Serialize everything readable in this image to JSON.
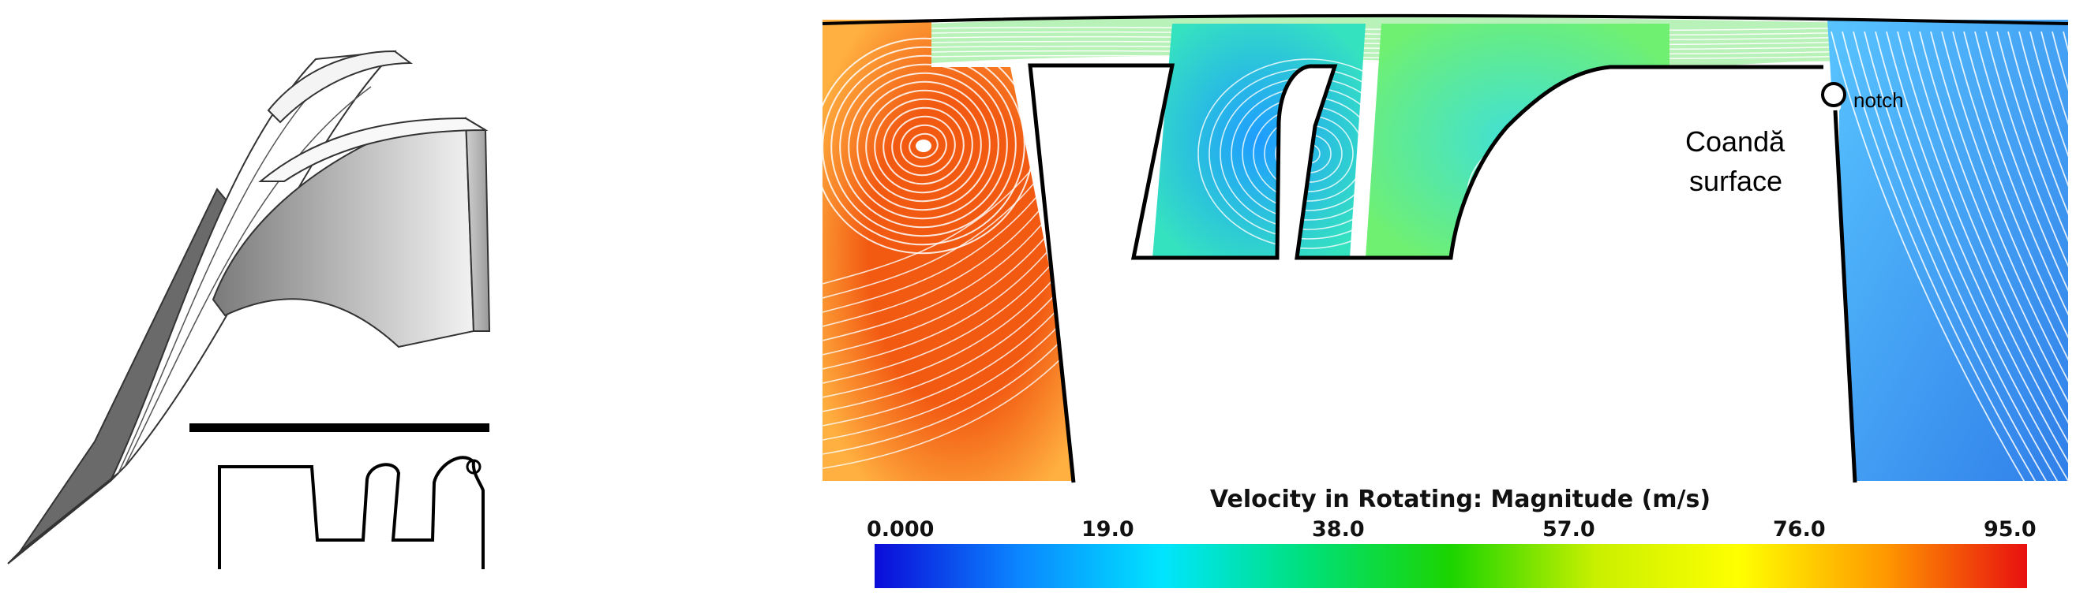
{
  "annotations": {
    "coanda_line1": "Coandă",
    "coanda_line2": "surface",
    "notch": "notch"
  },
  "colorbar": {
    "title": "Velocity in Rotating: Magnitude (m/s)",
    "ticks": [
      "0.000",
      "19.0",
      "38.0",
      "57.0",
      "76.0",
      "95.0"
    ],
    "range": [
      0,
      95
    ],
    "colors": [
      "#0b0bd8",
      "#0b86ff",
      "#00e5ff",
      "#00e07a",
      "#1bd400",
      "#c8f000",
      "#ffff00",
      "#ff9a00",
      "#e81010"
    ]
  },
  "flow_colors": {
    "left_vortex": "#f25a12",
    "left_vortex_outer": "#ffb040",
    "cavity1_core": "#1e9cff",
    "cavity1_outer": "#35e2c0",
    "cavity2_core": "#3fe0d8",
    "cavity2_outer": "#70f070",
    "gap_jet": "#4ee84e",
    "right_region": "#3aa6f0"
  }
}
